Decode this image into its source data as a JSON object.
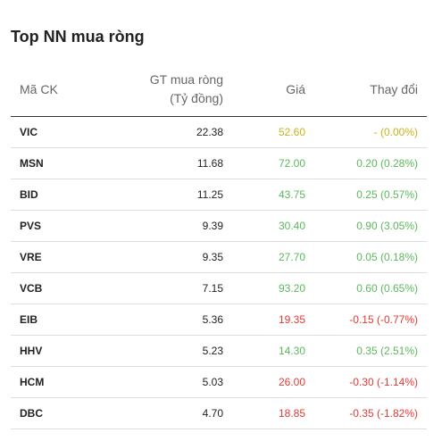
{
  "title": "Top NN mua ròng",
  "headers": {
    "symbol": "Mã CK",
    "net_buy_line1": "GT mua ròng",
    "net_buy_line2": "(Tỷ đồng)",
    "price": "Giá",
    "change": "Thay đổi"
  },
  "colors": {
    "up": "#5cb85c",
    "down": "#e53935",
    "reference": "#c9b21c"
  },
  "rows": [
    {
      "symbol": "VIC",
      "net_buy": "22.38",
      "price": "52.60",
      "change": "- (0.00%)",
      "trend": "ref"
    },
    {
      "symbol": "MSN",
      "net_buy": "11.68",
      "price": "72.00",
      "change": "0.20 (0.28%)",
      "trend": "up"
    },
    {
      "symbol": "BID",
      "net_buy": "11.25",
      "price": "43.75",
      "change": "0.25 (0.57%)",
      "trend": "up"
    },
    {
      "symbol": "PVS",
      "net_buy": "9.39",
      "price": "30.40",
      "change": "0.90 (3.05%)",
      "trend": "up"
    },
    {
      "symbol": "VRE",
      "net_buy": "9.35",
      "price": "27.70",
      "change": "0.05 (0.18%)",
      "trend": "up"
    },
    {
      "symbol": "VCB",
      "net_buy": "7.15",
      "price": "93.20",
      "change": "0.60 (0.65%)",
      "trend": "up"
    },
    {
      "symbol": "EIB",
      "net_buy": "5.36",
      "price": "19.35",
      "change": "-0.15 (-0.77%)",
      "trend": "down"
    },
    {
      "symbol": "HHV",
      "net_buy": "5.23",
      "price": "14.30",
      "change": "0.35 (2.51%)",
      "trend": "up"
    },
    {
      "symbol": "HCM",
      "net_buy": "5.03",
      "price": "26.00",
      "change": "-0.30 (-1.14%)",
      "trend": "down"
    },
    {
      "symbol": "DBC",
      "net_buy": "4.70",
      "price": "18.85",
      "change": "-0.35 (-1.82%)",
      "trend": "down"
    }
  ]
}
